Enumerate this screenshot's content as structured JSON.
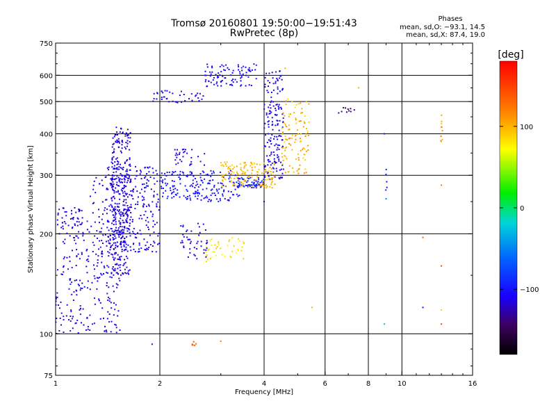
{
  "header": {
    "title_line1": "Tromsø 20160801 19:50:00−19:51:43",
    "title_line2": "RwPretec (8p)"
  },
  "stats": {
    "heading": "Phases",
    "line_o": "mean, sd,O: −93.1, 14.5",
    "line_x": "mean, sd,X:  87.4, 19.0"
  },
  "colorbar": {
    "unit_label": "[deg]",
    "min": -180,
    "max": 180,
    "ticks": [
      {
        "value": 100,
        "label": "100"
      },
      {
        "value": 0,
        "label": "0"
      },
      {
        "value": -100,
        "label": "−100"
      }
    ]
  },
  "chart_data": {
    "type": "scatter",
    "title": "Tromsø 20160801 19:50:00−19:51:43",
    "subtitle": "RwPretec (8p)",
    "xlabel": "Frequency [MHz]",
    "ylabel": "Stationary phase Virtual Height [km]",
    "xscale": "log",
    "yscale": "log",
    "xlim": [
      1,
      16
    ],
    "ylim": [
      75,
      750
    ],
    "grid": true,
    "color_by": "phase [deg]",
    "x_ticks": [
      {
        "value": 1,
        "label": "1"
      },
      {
        "value": 2,
        "label": "2"
      },
      {
        "value": 4,
        "label": "4"
      },
      {
        "value": 6,
        "label": "6"
      },
      {
        "value": 8,
        "label": "8"
      },
      {
        "value": 10,
        "label": "10"
      },
      {
        "value": 16,
        "label": "16"
      }
    ],
    "x_gridlines": [
      2,
      4,
      6,
      8,
      10
    ],
    "y_ticks": [
      {
        "value": 75,
        "label": "75"
      },
      {
        "value": 100,
        "label": "100"
      },
      {
        "value": 200,
        "label": "200"
      },
      {
        "value": 300,
        "label": "300"
      },
      {
        "value": 400,
        "label": "400"
      },
      {
        "value": 500,
        "label": "500"
      },
      {
        "value": 600,
        "label": "600"
      },
      {
        "value": 750,
        "label": "750"
      }
    ],
    "y_gridlines": [
      100,
      200,
      300,
      400,
      500,
      600
    ],
    "clusters": [
      {
        "desc": "low diagonal band",
        "f": [
          1.0,
          1.55
        ],
        "h": [
          100,
          220
        ],
        "n": 260,
        "phase": -110,
        "spread": 15
      },
      {
        "desc": "vertical column",
        "f": [
          1.45,
          1.65
        ],
        "h": [
          150,
          420
        ],
        "n": 300,
        "phase": -115,
        "spread": 12
      },
      {
        "desc": "mid band",
        "f": [
          1.4,
          2.0
        ],
        "h": [
          175,
          320
        ],
        "n": 240,
        "phase": -110,
        "spread": 15
      },
      {
        "desc": "shelf near 1.2",
        "f": [
          1.0,
          1.2
        ],
        "h": [
          208,
          240
        ],
        "n": 40,
        "phase": -115,
        "spread": 10
      },
      {
        "desc": "upper scatter",
        "f": [
          1.25,
          1.6
        ],
        "h": [
          180,
          300
        ],
        "n": 80,
        "phase": -115,
        "spread": 12
      },
      {
        "desc": "O-trace tail",
        "f": [
          2.0,
          3.4
        ],
        "h": [
          250,
          310
        ],
        "n": 190,
        "phase": -100,
        "spread": 10
      },
      {
        "desc": "O-trace",
        "f": [
          3.3,
          4.0
        ],
        "h": [
          275,
          295
        ],
        "n": 80,
        "phase": -95,
        "spread": 10
      },
      {
        "desc": "O-trace cusp",
        "f": [
          4.0,
          4.55
        ],
        "h": [
          290,
          620
        ],
        "n": 170,
        "phase": -110,
        "spread": 12
      },
      {
        "desc": "high F2 band",
        "f": [
          2.7,
          3.8
        ],
        "h": [
          555,
          650
        ],
        "n": 90,
        "phase": -105,
        "spread": 12
      },
      {
        "desc": "upper mid band",
        "f": [
          1.9,
          2.7
        ],
        "h": [
          495,
          540
        ],
        "n": 40,
        "phase": -110,
        "spread": 12
      },
      {
        "desc": "X-trace",
        "f": [
          3.0,
          4.3
        ],
        "h": [
          275,
          330
        ],
        "n": 140,
        "phase": 95,
        "spread": 15
      },
      {
        "desc": "X-trace cusp",
        "f": [
          4.5,
          5.4
        ],
        "h": [
          300,
          520
        ],
        "n": 110,
        "phase": 100,
        "spread": 18
      },
      {
        "desc": "X lower patch",
        "f": [
          2.7,
          3.5
        ],
        "h": [
          165,
          195
        ],
        "n": 45,
        "phase": 80,
        "spread": 15
      },
      {
        "desc": "lower blue patch",
        "f": [
          2.3,
          2.75
        ],
        "h": [
          168,
          215
        ],
        "n": 45,
        "phase": -110,
        "spread": 12
      },
      {
        "desc": "mid blue patch",
        "f": [
          2.2,
          2.7
        ],
        "h": [
          320,
          360
        ],
        "n": 30,
        "phase": -110,
        "spread": 10
      },
      {
        "desc": "purple patch",
        "f": [
          6.5,
          7.3
        ],
        "h": [
          460,
          480
        ],
        "n": 10,
        "phase": -140,
        "spread": 8
      },
      {
        "desc": "yellow column near 13",
        "f": [
          12.9,
          13.1
        ],
        "h": [
          365,
          460
        ],
        "n": 10,
        "phase": 110,
        "spread": 15
      },
      {
        "desc": "blue column near 9",
        "f": [
          8.95,
          9.05
        ],
        "h": [
          270,
          330
        ],
        "n": 6,
        "phase": -100,
        "spread": 10
      },
      {
        "desc": "orange patch",
        "f": [
          2.45,
          2.55
        ],
        "h": [
          92,
          95
        ],
        "n": 6,
        "phase": 140,
        "spread": 10
      }
    ],
    "isolated_points": [
      {
        "f": 1.9,
        "h": 93,
        "phase": -110
      },
      {
        "f": 3.0,
        "h": 95,
        "phase": 120
      },
      {
        "f": 4.0,
        "h": 250,
        "phase": -110
      },
      {
        "f": 5.5,
        "h": 120,
        "phase": 100
      },
      {
        "f": 7.5,
        "h": 550,
        "phase": 100
      },
      {
        "f": 8.9,
        "h": 400,
        "phase": -100
      },
      {
        "f": 8.9,
        "h": 107,
        "phase": -30
      },
      {
        "f": 9.0,
        "h": 255,
        "phase": -50
      },
      {
        "f": 11.5,
        "h": 195,
        "phase": 140
      },
      {
        "f": 11.5,
        "h": 120,
        "phase": -110
      },
      {
        "f": 13.0,
        "h": 280,
        "phase": 130
      },
      {
        "f": 13.0,
        "h": 160,
        "phase": 150
      },
      {
        "f": 13.0,
        "h": 118,
        "phase": 90
      },
      {
        "f": 13.0,
        "h": 107,
        "phase": 150
      },
      {
        "f": 4.6,
        "h": 630,
        "phase": 100
      }
    ]
  }
}
